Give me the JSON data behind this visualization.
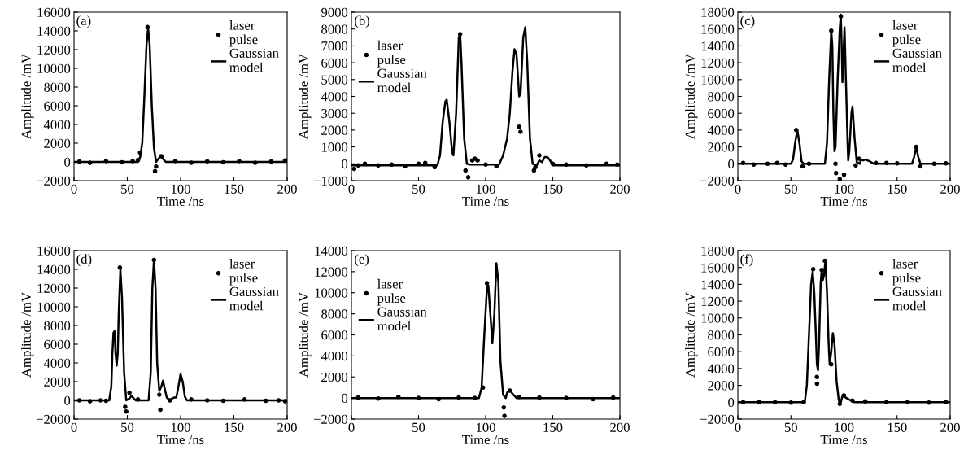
{
  "chart_data": [
    {
      "type": "line",
      "annotations": [
        "(a)"
      ],
      "xlabel": "Time /ns",
      "ylabel": "Amplitude /mV",
      "legend": "top right",
      "xlim": [
        0,
        200
      ],
      "xticks": [
        0,
        50,
        100,
        150,
        200
      ],
      "ylim": [
        -2000,
        16000
      ],
      "yticks": [
        -2000,
        0,
        2000,
        4000,
        6000,
        8000,
        10000,
        12000,
        14000,
        16000
      ],
      "series": [
        {
          "name": "laser\npulse",
          "type": "scatter",
          "marker": "circle",
          "color": "#000000",
          "x": [
            5,
            15,
            30,
            45,
            55,
            60,
            62,
            69,
            76,
            77,
            82,
            95,
            110,
            125,
            140,
            155,
            170,
            185,
            198
          ],
          "values": [
            50,
            -100,
            100,
            -50,
            80,
            200,
            1000,
            14400,
            -1000,
            -500,
            600,
            100,
            -80,
            60,
            -50,
            100,
            -100,
            50,
            150
          ]
        },
        {
          "name": "Gaussian\nmodel",
          "color": "#000000",
          "x": [
            0,
            60,
            62,
            64,
            66,
            68,
            69.5,
            71,
            73,
            75,
            77,
            79,
            81,
            83,
            86,
            200
          ],
          "values": [
            0,
            0,
            500,
            2000,
            7000,
            12500,
            14300,
            12500,
            6000,
            1500,
            0,
            300,
            600,
            400,
            0,
            0
          ]
        }
      ]
    },
    {
      "type": "line",
      "annotations": [
        "(b)"
      ],
      "xlabel": "Time /ns",
      "ylabel": "Amplitude /mV",
      "legend": "top left",
      "xlim": [
        0,
        200
      ],
      "xticks": [
        0,
        50,
        100,
        150,
        200
      ],
      "ylim": [
        -1000,
        9000
      ],
      "yticks": [
        -1000,
        0,
        1000,
        2000,
        3000,
        4000,
        5000,
        6000,
        7000,
        8000,
        9000
      ],
      "series": [
        {
          "name": "laser\npulse",
          "type": "scatter",
          "marker": "circle",
          "color": "#000000",
          "x": [
            2,
            5,
            10,
            20,
            30,
            40,
            50,
            55,
            62,
            81,
            85,
            87,
            90,
            92,
            94,
            100,
            108,
            125,
            126,
            136,
            137,
            140,
            150,
            160,
            175,
            190,
            198
          ],
          "values": [
            -300,
            -100,
            0,
            -100,
            -50,
            -150,
            0,
            50,
            -200,
            7700,
            -400,
            -800,
            200,
            300,
            200,
            -50,
            -150,
            2200,
            1900,
            -400,
            -200,
            500,
            0,
            -50,
            -100,
            0,
            -50
          ]
        },
        {
          "name": "Gaussian\nmodel",
          "color": "#000000",
          "x": [
            0,
            64,
            66,
            68,
            70,
            71,
            73,
            75,
            76,
            78,
            80,
            81,
            82,
            84,
            86,
            88,
            110,
            113,
            116,
            118,
            120,
            121.5,
            123,
            125,
            126,
            128,
            129.5,
            131,
            133,
            135,
            138,
            140,
            142,
            144,
            146,
            148,
            150,
            200
          ],
          "values": [
            -100,
            -100,
            500,
            2500,
            3700,
            3800,
            2500,
            700,
            500,
            3000,
            7500,
            7700,
            6000,
            1500,
            0,
            -50,
            -50,
            500,
            1500,
            3000,
            5500,
            6800,
            6500,
            4000,
            4200,
            7500,
            8100,
            6000,
            1500,
            0,
            -100,
            200,
            100,
            400,
            400,
            200,
            -100,
            -100
          ]
        }
      ]
    },
    {
      "type": "line",
      "annotations": [
        "(c)"
      ],
      "xlabel": "Time /ns",
      "ylabel": "Amplitude /mV",
      "legend": "top right",
      "xlim": [
        0,
        200
      ],
      "xticks": [
        0,
        50,
        100,
        150,
        200
      ],
      "ylim": [
        -2000,
        18000
      ],
      "yticks": [
        -2000,
        0,
        2000,
        4000,
        6000,
        8000,
        10000,
        12000,
        14000,
        16000,
        18000
      ],
      "series": [
        {
          "name": "laser\npulse",
          "type": "scatter",
          "marker": "circle",
          "color": "#000000",
          "x": [
            5,
            15,
            28,
            37,
            45,
            55,
            61,
            67,
            88,
            92,
            92.5,
            96,
            97,
            100,
            111,
            114,
            130,
            140,
            150,
            168,
            172,
            185,
            196
          ],
          "values": [
            100,
            -100,
            0,
            100,
            -100,
            4000,
            -300,
            0,
            15800,
            0,
            -1100,
            -1800,
            17500,
            -1300,
            -200,
            600,
            100,
            100,
            50,
            2000,
            -300,
            0,
            50
          ]
        },
        {
          "name": "Gaussian\nmodel",
          "color": "#000000",
          "x": [
            0,
            50,
            52,
            54,
            56,
            58,
            60,
            62,
            82,
            84,
            86,
            88,
            89,
            90,
            91,
            92,
            94,
            96,
            97,
            98,
            98.5,
            99.5,
            100.5,
            102,
            103.5,
            104,
            105,
            107,
            108,
            110,
            112,
            115,
            116,
            118,
            120,
            124,
            128,
            164,
            166,
            168,
            170,
            172,
            200
          ],
          "values": [
            0,
            0,
            500,
            2500,
            4000,
            2500,
            300,
            0,
            0,
            2500,
            10000,
            15800,
            14000,
            6000,
            1500,
            2000,
            10000,
            16000,
            17700,
            13000,
            9700,
            13000,
            16200,
            9000,
            2000,
            400,
            1500,
            6000,
            6800,
            3000,
            200,
            0,
            500,
            400,
            500,
            300,
            0,
            0,
            800,
            2000,
            800,
            0,
            0
          ]
        }
      ]
    },
    {
      "type": "line",
      "annotations": [
        "(d)"
      ],
      "xlabel": "Time /ns",
      "ylabel": "Amplitude /mV",
      "legend": "top right",
      "xlim": [
        0,
        200
      ],
      "xticks": [
        0,
        50,
        100,
        150,
        200
      ],
      "ylim": [
        -2000,
        16000
      ],
      "yticks": [
        -2000,
        0,
        2000,
        4000,
        6000,
        8000,
        10000,
        12000,
        14000,
        16000
      ],
      "series": [
        {
          "name": "laser\npulse",
          "type": "scatter",
          "marker": "circle",
          "color": "#000000",
          "x": [
            5,
            15,
            25,
            30,
            43,
            48,
            49,
            52,
            60,
            75,
            80,
            81,
            90,
            110,
            125,
            140,
            160,
            180,
            192,
            198
          ],
          "values": [
            0,
            -100,
            0,
            -50,
            14200,
            -700,
            -1200,
            800,
            100,
            15000,
            600,
            -1000,
            0,
            100,
            0,
            -50,
            100,
            -50,
            0,
            -100
          ]
        },
        {
          "name": "Gaussian\nmodel",
          "color": "#000000",
          "x": [
            0,
            33,
            35,
            36,
            37,
            38,
            39,
            40,
            41,
            42,
            43.5,
            45,
            47,
            49,
            52,
            54,
            56,
            58,
            70,
            72,
            73.5,
            75,
            76.5,
            78,
            80,
            82,
            83.5,
            85,
            87,
            90,
            92,
            94,
            96,
            98,
            100,
            102,
            104,
            106,
            200
          ],
          "values": [
            0,
            0,
            1500,
            5000,
            7200,
            7400,
            5000,
            3700,
            5000,
            9500,
            14000,
            11000,
            3000,
            0,
            200,
            500,
            200,
            0,
            0,
            3000,
            12000,
            15000,
            12000,
            4000,
            1000,
            1500,
            2100,
            1300,
            300,
            0,
            200,
            300,
            300,
            1500,
            2800,
            2000,
            400,
            0,
            0
          ]
        }
      ]
    },
    {
      "type": "line",
      "annotations": [
        "(e)"
      ],
      "xlabel": "Time /ns",
      "ylabel": "Amplitude /mV",
      "legend": "top left",
      "xlim": [
        0,
        200
      ],
      "xticks": [
        0,
        50,
        100,
        150,
        200
      ],
      "ylim": [
        -2000,
        14000
      ],
      "yticks": [
        -2000,
        0,
        2000,
        4000,
        6000,
        8000,
        10000,
        12000,
        14000
      ],
      "series": [
        {
          "name": "laser\npulse",
          "type": "scatter",
          "marker": "circle",
          "color": "#000000",
          "x": [
            5,
            20,
            35,
            50,
            65,
            80,
            92,
            98,
            101,
            113.5,
            114,
            118,
            125,
            140,
            160,
            180,
            195
          ],
          "values": [
            50,
            -50,
            100,
            0,
            -100,
            50,
            0,
            1000,
            10900,
            -900,
            -1700,
            700,
            100,
            50,
            0,
            -100,
            50
          ]
        },
        {
          "name": "Gaussian\nmodel",
          "color": "#000000",
          "x": [
            0,
            95,
            97,
            99,
            101,
            102,
            103.5,
            105,
            106.5,
            108,
            109.5,
            111,
            113,
            115,
            116,
            118,
            120,
            123,
            200
          ],
          "values": [
            0,
            0,
            1000,
            6000,
            10500,
            10700,
            8000,
            5200,
            8000,
            12800,
            11000,
            3500,
            300,
            0,
            500,
            800,
            400,
            0,
            0
          ]
        }
      ]
    },
    {
      "type": "line",
      "annotations": [
        "(f)"
      ],
      "xlabel": "Time /ns",
      "ylabel": "Amplitude /mV",
      "legend": "top right",
      "xlim": [
        0,
        200
      ],
      "xticks": [
        0,
        50,
        100,
        150,
        200
      ],
      "ylim": [
        -2000,
        18000
      ],
      "yticks": [
        -2000,
        0,
        2000,
        4000,
        6000,
        8000,
        10000,
        12000,
        14000,
        16000,
        18000
      ],
      "series": [
        {
          "name": "laser\npulse",
          "type": "scatter",
          "marker": "circle",
          "color": "#000000",
          "x": [
            5,
            20,
            35,
            50,
            62,
            71,
            74.5,
            74.6,
            79,
            82,
            88,
            96,
            100,
            108,
            120,
            140,
            160,
            180,
            196
          ],
          "values": [
            0,
            50,
            0,
            -50,
            0,
            15800,
            3000,
            2200,
            15700,
            16800,
            4500,
            -200,
            800,
            200,
            100,
            0,
            50,
            -50,
            0
          ]
        },
        {
          "name": "Gaussian\nmodel",
          "color": "#000000",
          "x": [
            0,
            63,
            65,
            67,
            69,
            70.5,
            72,
            73.5,
            74.5,
            75.5,
            76.5,
            78,
            79,
            80,
            81,
            82.5,
            84,
            85.5,
            86.5,
            88,
            89.5,
            91,
            93,
            95,
            96.5,
            98,
            99,
            101,
            105,
            110,
            200
          ],
          "values": [
            0,
            0,
            2000,
            8000,
            14000,
            15500,
            13000,
            8000,
            4500,
            3800,
            7000,
            14000,
            15700,
            14500,
            15000,
            16700,
            13000,
            7000,
            4500,
            6000,
            8200,
            7000,
            2500,
            300,
            -300,
            500,
            900,
            600,
            300,
            0,
            0
          ]
        }
      ]
    }
  ]
}
